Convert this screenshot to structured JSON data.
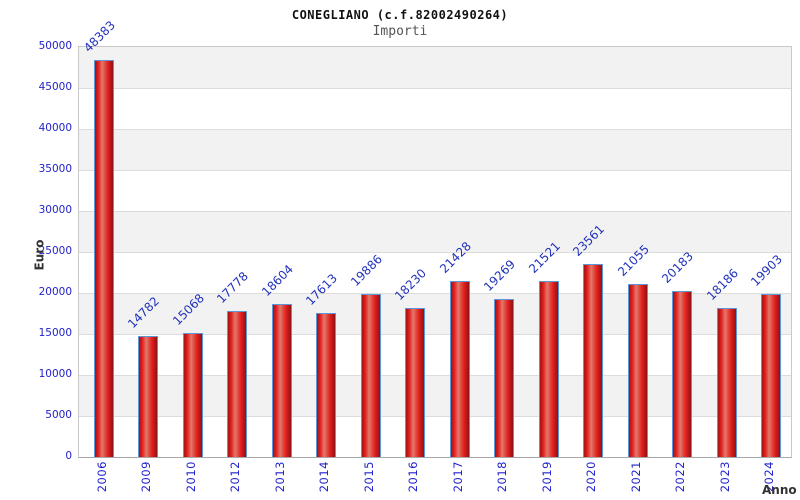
{
  "header": {
    "title": "CONEGLIANO (c.f.82002490264)",
    "subtitle": "Importi"
  },
  "axes": {
    "y_label": "Euro",
    "x_label": "Anno",
    "y_ticks": [
      "50000",
      "45000",
      "40000",
      "35000",
      "30000",
      "25000",
      "20000",
      "15000",
      "10000",
      "5000",
      "0"
    ]
  },
  "chart_data": {
    "type": "bar",
    "title": "CONEGLIANO (c.f.82002490264)",
    "subtitle": "Importi",
    "xlabel": "Anno",
    "ylabel": "Euro",
    "ylim": [
      0,
      50000
    ],
    "ytick_step": 5000,
    "grid": "horizontal gridlines every 5000 with alternating gray/white bands",
    "legend_position": "none",
    "categories": [
      "2006",
      "2009",
      "2010",
      "2012",
      "2013",
      "2014",
      "2015",
      "2016",
      "2017",
      "2018",
      "2019",
      "2020",
      "2021",
      "2022",
      "2023",
      "2024"
    ],
    "values": [
      48383,
      14782,
      15068,
      17778,
      18604,
      17613,
      19886,
      18230,
      21428,
      19269,
      21521,
      23561,
      21055,
      20183,
      18186,
      19903
    ],
    "colors": {
      "bar_fill": "#e41e1e",
      "bar_highlight": "#e2796c",
      "bar_border": "#5e97d8",
      "label_blue": "#2222cc",
      "band_gray": "#f2f2f2",
      "band_white": "#ffffff",
      "grid_line": "#dcdcdc",
      "title_color": "#111111",
      "subtitle_color": "#555555",
      "axis_title_color": "#333333"
    }
  }
}
